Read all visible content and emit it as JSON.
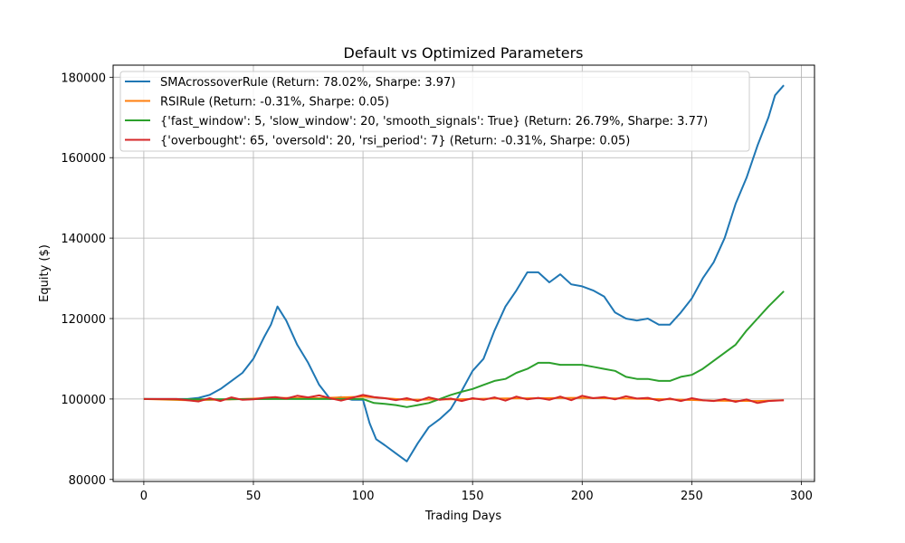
{
  "chart_data": {
    "type": "line",
    "title": "Default vs Optimized Parameters",
    "xlabel": "Trading Days",
    "ylabel": "Equity ($)",
    "xlim": [
      -14,
      306
    ],
    "ylim": [
      79500,
      183000
    ],
    "xticks": [
      0,
      50,
      100,
      150,
      200,
      250,
      300
    ],
    "yticks": [
      80000,
      100000,
      120000,
      140000,
      160000,
      180000
    ],
    "grid": true,
    "legend_position": "top-left",
    "series": [
      {
        "name": "SMAcrossoverRule (Return: 78.02%, Sharpe: 3.97)",
        "color": "#1f77b4",
        "x": [
          0,
          10,
          20,
          25,
          30,
          35,
          40,
          45,
          50,
          55,
          58,
          61,
          65,
          70,
          75,
          80,
          85,
          90,
          95,
          100,
          103,
          106,
          110,
          115,
          120,
          125,
          130,
          135,
          140,
          145,
          150,
          155,
          160,
          165,
          170,
          175,
          180,
          185,
          190,
          195,
          200,
          205,
          210,
          215,
          220,
          225,
          230,
          235,
          240,
          245,
          250,
          255,
          260,
          265,
          270,
          275,
          280,
          285,
          288,
          292
        ],
        "values": [
          100000,
          100000,
          100000,
          100300,
          101000,
          102500,
          104500,
          106500,
          110000,
          115500,
          118500,
          123000,
          119500,
          113500,
          109000,
          103500,
          100000,
          100500,
          99800,
          99800,
          94000,
          90000,
          88500,
          86500,
          84500,
          89000,
          93000,
          95000,
          97500,
          102000,
          107000,
          110000,
          117000,
          123000,
          127000,
          131500,
          131500,
          129000,
          131000,
          128500,
          128000,
          127000,
          125500,
          121500,
          120000,
          119500,
          120000,
          118500,
          118500,
          121500,
          125000,
          130000,
          134000,
          140000,
          148500,
          155000,
          163000,
          170000,
          175500,
          178000
        ]
      },
      {
        "name": "RSIRule (Return: -0.31%, Sharpe: 0.05)",
        "color": "#ff7f0e",
        "x": [
          0,
          20,
          40,
          60,
          80,
          100,
          120,
          140,
          160,
          180,
          200,
          220,
          240,
          260,
          280,
          292
        ],
        "values": [
          100000,
          99700,
          99900,
          100300,
          100200,
          100600,
          99800,
          99900,
          100100,
          100200,
          100300,
          100100,
          99900,
          99600,
          99500,
          99690
        ]
      },
      {
        "name": "{'fast_window': 5, 'slow_window': 20, 'smooth_signals': True} (Return: 26.79%, Sharpe: 3.77)",
        "color": "#2ca02c",
        "x": [
          0,
          20,
          40,
          60,
          80,
          95,
          100,
          105,
          110,
          115,
          120,
          125,
          130,
          135,
          140,
          145,
          150,
          155,
          160,
          165,
          170,
          175,
          180,
          185,
          190,
          195,
          200,
          205,
          210,
          215,
          220,
          225,
          230,
          235,
          240,
          245,
          250,
          255,
          260,
          265,
          270,
          275,
          280,
          285,
          292
        ],
        "values": [
          100000,
          99900,
          99950,
          100000,
          100000,
          100000,
          100000,
          99000,
          98800,
          98500,
          98000,
          98500,
          99000,
          100000,
          101000,
          101800,
          102500,
          103500,
          104500,
          105000,
          106500,
          107500,
          109000,
          109000,
          108500,
          108500,
          108500,
          108000,
          107500,
          107000,
          105500,
          105000,
          105000,
          104500,
          104500,
          105500,
          106000,
          107500,
          109500,
          111500,
          113500,
          117000,
          120000,
          123000,
          126790
        ]
      },
      {
        "name": "{'overbought': 65, 'oversold': 20, 'rsi_period': 7} (Return: -0.31%, Sharpe: 0.05)",
        "color": "#d62728",
        "x": [
          0,
          15,
          20,
          25,
          30,
          35,
          40,
          45,
          50,
          55,
          60,
          65,
          70,
          75,
          80,
          85,
          90,
          95,
          100,
          105,
          110,
          115,
          120,
          125,
          130,
          135,
          140,
          145,
          150,
          155,
          160,
          165,
          170,
          175,
          180,
          185,
          190,
          195,
          200,
          205,
          210,
          215,
          220,
          225,
          230,
          235,
          240,
          245,
          250,
          255,
          260,
          265,
          270,
          275,
          280,
          285,
          292
        ],
        "values": [
          100000,
          100000,
          99700,
          99400,
          100200,
          99500,
          100400,
          99800,
          99900,
          100300,
          100500,
          100100,
          100800,
          100400,
          100900,
          100200,
          99600,
          100300,
          101000,
          100500,
          100200,
          99700,
          100200,
          99500,
          100400,
          99800,
          100100,
          99500,
          100200,
          99800,
          100400,
          99600,
          100600,
          99900,
          100300,
          99800,
          100600,
          99700,
          100800,
          100200,
          100500,
          99900,
          100700,
          100100,
          100300,
          99600,
          100100,
          99500,
          100200,
          99700,
          99500,
          100000,
          99300,
          99900,
          99000,
          99500,
          99690
        ]
      }
    ]
  }
}
